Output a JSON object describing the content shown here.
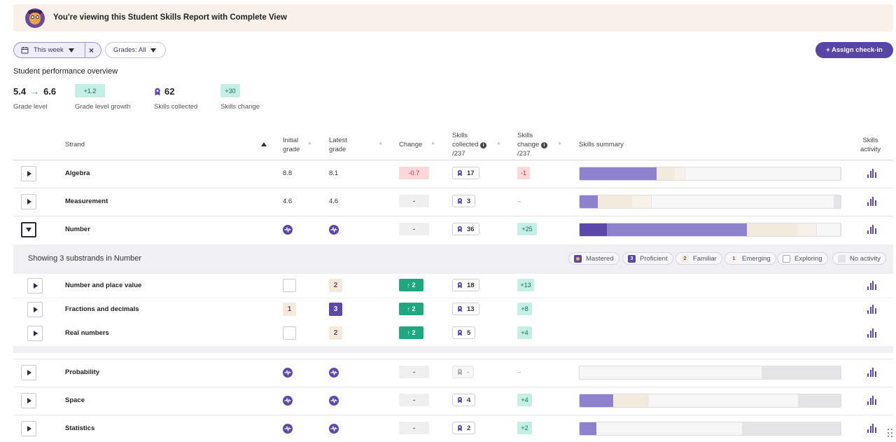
{
  "banner": {
    "text": "You're viewing this Student Skills Report with Complete View"
  },
  "filters": {
    "week_label": "This week",
    "clear": "×",
    "grades_label": "Grades: All"
  },
  "assign_label": "+ Assign check-in",
  "overview": {
    "title": "Student performance overview",
    "grade_from": "5.4",
    "grade_to": "6.6",
    "grade_arrow": "→",
    "grade_label": "Grade level",
    "growth": "+1.2",
    "growth_label": "Grade level growth",
    "skills": "62",
    "skills_label": "Skills collected",
    "skills_change": "+30",
    "skills_change_label": "Skills change"
  },
  "headers": {
    "strand": "Strand",
    "initial_1": "Initial",
    "initial_2": "grade",
    "latest_1": "Latest",
    "latest_2": "grade",
    "change": "Change",
    "collected_1": "Skills",
    "collected_2": "collected",
    "collected_3": "/237",
    "skchange_1": "Skills",
    "skchange_2": "change",
    "skchange_3": "/237",
    "summary": "Skills summary",
    "activity_1": "Skills",
    "activity_2": "activity"
  },
  "rows": [
    {
      "strand": "Algebra",
      "initial": "8.8",
      "latest": "8.1",
      "change": "-0.7",
      "skills": "17",
      "skills_change": "-1"
    },
    {
      "strand": "Measurement",
      "initial": "4.6",
      "latest": "4.6",
      "change": "-",
      "skills": "3",
      "skills_change": "–"
    },
    {
      "strand": "Number",
      "change": "-",
      "skills": "36",
      "skills_change": "+25"
    },
    {
      "strand": "Probability",
      "change": "-",
      "skills": "-",
      "skills_change": "–"
    },
    {
      "strand": "Space",
      "change": "-",
      "skills": "4",
      "skills_change": "+4"
    },
    {
      "strand": "Statistics",
      "change": "-",
      "skills": "2",
      "skills_change": "+2"
    }
  ],
  "substrands": {
    "title": "Showing 3 substrands in Number",
    "items": [
      {
        "name": "Number and place value",
        "initial": "",
        "latest": "2",
        "change": "↑ 2",
        "skills": "18",
        "skills_change": "+13"
      },
      {
        "name": "Fractions and decimals",
        "initial": "1",
        "latest": "3",
        "change": "↑ 2",
        "skills": "13",
        "skills_change": "+8"
      },
      {
        "name": "Real numbers",
        "initial": "",
        "latest": "2",
        "change": "↑ 2",
        "skills": "5",
        "skills_change": "+4"
      }
    ]
  },
  "legend": {
    "mastered": "Mastered",
    "proficient_num": "3",
    "proficient": "Proficient",
    "familiar_num": "2",
    "familiar": "Familiar",
    "emerging_num": "1",
    "emerging": "Emerging",
    "exploring": "Exploring",
    "no_activity": "No activity"
  },
  "colors": {
    "mastered": "#5b48a8",
    "proficient": "#8f82cc",
    "familiar": "#f2eadd",
    "emerging": "#f7f1e9",
    "exploring": "#f7f7f8",
    "no_activity": "#e4e4e6",
    "accent": "#5746a6"
  },
  "skill_summary": [
    {
      "strand": "Algebra",
      "mastered": 0,
      "proficient": 0.295,
      "familiar": 0.07,
      "emerging": 0.04,
      "exploring": 0.595,
      "no_activity": 0
    },
    {
      "strand": "Measurement",
      "mastered": 0,
      "proficient": 0.07,
      "familiar": 0.13,
      "emerging": 0.075,
      "exploring": 0.7,
      "no_activity": 0.025
    },
    {
      "strand": "Number",
      "mastered": 0.105,
      "proficient": 0.535,
      "familiar": 0.195,
      "emerging": 0.075,
      "exploring": 0.09,
      "no_activity": 0
    },
    {
      "strand": "Probability",
      "mastered": 0,
      "proficient": 0,
      "familiar": 0,
      "emerging": 0,
      "exploring": 0.7,
      "no_activity": 0.3
    },
    {
      "strand": "Space",
      "mastered": 0,
      "proficient": 0.13,
      "familiar": 0.135,
      "emerging": 0,
      "exploring": 0.575,
      "no_activity": 0.16
    },
    {
      "strand": "Statistics",
      "mastered": 0,
      "proficient": 0.065,
      "familiar": 0,
      "emerging": 0,
      "exploring": 0.56,
      "no_activity": 0.375
    }
  ]
}
